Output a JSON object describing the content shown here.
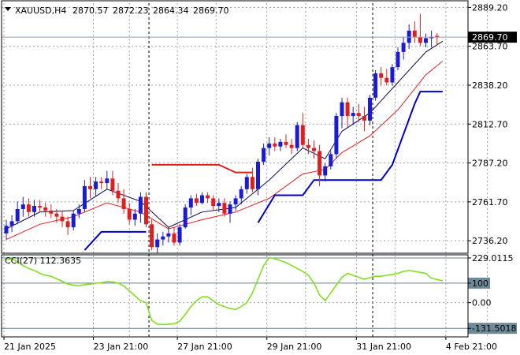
{
  "chart_data": [
    {
      "type": "candlestick",
      "symbol": "XAUUSD,H4",
      "ohlc_header": [
        "2870.57",
        "2872.23",
        "2864.34",
        "2869.70"
      ],
      "current_price_label": "2869.70",
      "current_price": 2869.7,
      "ylim": [
        2728,
        2892
      ],
      "y_ticks": [
        "2889.20",
        "2863.70",
        "2838.20",
        "2812.70",
        "2787.20",
        "2761.70",
        "2736.20"
      ],
      "x_labels": [
        "21 Jan 2025",
        "23 Jan 21:00",
        "27 Jan 21:00",
        "29 Jan 21:00",
        "31 Jan 21:00",
        "4 Feb 21:00"
      ],
      "x_label_bar_index": [
        0,
        16,
        31,
        47,
        63,
        79
      ],
      "day_separators_bar_index": [
        25.5,
        65.5
      ],
      "grid": true,
      "colors": {
        "up": "#1b1bd6",
        "down": "#e01e1e",
        "fast_ma": "#0a0a50",
        "slow_ma": "#e01e1e",
        "stop_red": "#e01e1e",
        "stop_blue": "#0000cc",
        "cci": "#7fe01e",
        "grid": "#9aa3aa",
        "price_line": "#8ea0b0"
      },
      "candles": [
        [
          2741,
          2750,
          2737,
          2746
        ],
        [
          2746,
          2753,
          2742,
          2749
        ],
        [
          2749,
          2762,
          2747,
          2757
        ],
        [
          2757,
          2765,
          2752,
          2760
        ],
        [
          2760,
          2764,
          2752,
          2755
        ],
        [
          2755,
          2763,
          2752,
          2759
        ],
        [
          2759,
          2763,
          2755,
          2758
        ],
        [
          2758,
          2761,
          2752,
          2756
        ],
        [
          2756,
          2760,
          2751,
          2754
        ],
        [
          2754,
          2757,
          2748,
          2752
        ],
        [
          2752,
          2756,
          2745,
          2749
        ],
        [
          2749,
          2752,
          2740,
          2745
        ],
        [
          2745,
          2756,
          2743,
          2754
        ],
        [
          2754,
          2760,
          2751,
          2757
        ],
        [
          2757,
          2776,
          2755,
          2772
        ],
        [
          2772,
          2778,
          2764,
          2770
        ],
        [
          2770,
          2778,
          2765,
          2775
        ],
        [
          2775,
          2778,
          2770,
          2774
        ],
        [
          2774,
          2782,
          2770,
          2777
        ],
        [
          2777,
          2782,
          2766,
          2769
        ],
        [
          2769,
          2774,
          2761,
          2764
        ],
        [
          2764,
          2770,
          2754,
          2757
        ],
        [
          2757,
          2761,
          2747,
          2750
        ],
        [
          2750,
          2757,
          2746,
          2754
        ],
        [
          2754,
          2768,
          2748,
          2765
        ],
        [
          2765,
          2768,
          2745,
          2747
        ],
        [
          2747,
          2750,
          2730,
          2732
        ],
        [
          2732,
          2741,
          2728,
          2737
        ],
        [
          2737,
          2742,
          2733,
          2739
        ],
        [
          2739,
          2745,
          2735,
          2741
        ],
        [
          2741,
          2745,
          2733,
          2735
        ],
        [
          2735,
          2747,
          2733,
          2745
        ],
        [
          2745,
          2760,
          2744,
          2758
        ],
        [
          2758,
          2766,
          2753,
          2764
        ],
        [
          2764,
          2767,
          2759,
          2761
        ],
        [
          2761,
          2768,
          2760,
          2766
        ],
        [
          2766,
          2768,
          2761,
          2764
        ],
        [
          2764,
          2766,
          2756,
          2759
        ],
        [
          2759,
          2764,
          2755,
          2761
        ],
        [
          2761,
          2764,
          2752,
          2754
        ],
        [
          2754,
          2762,
          2748,
          2760
        ],
        [
          2760,
          2766,
          2756,
          2764
        ],
        [
          2764,
          2772,
          2760,
          2770
        ],
        [
          2770,
          2780,
          2767,
          2778
        ],
        [
          2778,
          2784,
          2768,
          2770
        ],
        [
          2770,
          2790,
          2766,
          2788
        ],
        [
          2788,
          2800,
          2786,
          2797
        ],
        [
          2797,
          2804,
          2792,
          2800
        ],
        [
          2800,
          2804,
          2795,
          2798
        ],
        [
          2798,
          2803,
          2795,
          2801
        ],
        [
          2801,
          2806,
          2797,
          2799
        ],
        [
          2799,
          2803,
          2793,
          2797
        ],
        [
          2797,
          2814,
          2795,
          2812
        ],
        [
          2812,
          2820,
          2797,
          2799
        ],
        [
          2799,
          2803,
          2793,
          2797
        ],
        [
          2797,
          2802,
          2790,
          2795
        ],
        [
          2795,
          2799,
          2772,
          2779
        ],
        [
          2779,
          2787,
          2775,
          2785
        ],
        [
          2785,
          2795,
          2783,
          2793
        ],
        [
          2793,
          2820,
          2790,
          2818
        ],
        [
          2818,
          2830,
          2810,
          2827
        ],
        [
          2827,
          2830,
          2811,
          2818
        ],
        [
          2818,
          2824,
          2812,
          2820
        ],
        [
          2820,
          2826,
          2814,
          2818
        ],
        [
          2818,
          2824,
          2808,
          2815
        ],
        [
          2815,
          2832,
          2812,
          2830
        ],
        [
          2830,
          2848,
          2828,
          2846
        ],
        [
          2846,
          2850,
          2838,
          2843
        ],
        [
          2843,
          2849,
          2838,
          2840
        ],
        [
          2840,
          2852,
          2838,
          2850
        ],
        [
          2850,
          2863,
          2848,
          2860
        ],
        [
          2860,
          2870,
          2855,
          2866
        ],
        [
          2866,
          2878,
          2862,
          2874
        ],
        [
          2874,
          2880,
          2866,
          2870
        ],
        [
          2870,
          2885,
          2864,
          2866
        ],
        [
          2866,
          2872,
          2863,
          2869
        ],
        [
          2869,
          2874,
          2863,
          2870
        ],
        [
          2870.57,
          2872.23,
          2864.34,
          2869.7
        ]
      ],
      "moving_averages": [
        {
          "color": "#0a0a50",
          "points": [
            [
              0,
              2744
            ],
            [
              6,
              2755
            ],
            [
              12,
              2756
            ],
            [
              18,
              2770
            ],
            [
              24,
              2762
            ],
            [
              29,
              2745
            ],
            [
              35,
              2755
            ],
            [
              41,
              2758
            ],
            [
              47,
              2776
            ],
            [
              53,
              2797
            ],
            [
              57,
              2790
            ],
            [
              60,
              2808
            ],
            [
              65,
              2820
            ],
            [
              70,
              2840
            ],
            [
              75,
              2860
            ],
            [
              78,
              2867
            ]
          ]
        },
        {
          "color": "#e01e1e",
          "points": [
            [
              0,
              2737
            ],
            [
              6,
              2747
            ],
            [
              12,
              2752
            ],
            [
              18,
              2761
            ],
            [
              24,
              2755
            ],
            [
              29,
              2744
            ],
            [
              35,
              2750
            ],
            [
              41,
              2755
            ],
            [
              47,
              2764
            ],
            [
              53,
              2780
            ],
            [
              57,
              2783
            ],
            [
              60,
              2794
            ],
            [
              65,
              2805
            ],
            [
              70,
              2822
            ],
            [
              75,
              2845
            ],
            [
              78,
              2854
            ]
          ]
        }
      ],
      "stop_lines": [
        {
          "color": "#e01e1e",
          "points": [
            [
              26,
              2786
            ],
            [
              38,
              2786
            ],
            [
              41,
              2781
            ],
            [
              44,
              2781
            ]
          ]
        },
        {
          "color": "#0000cc",
          "points": [
            [
              14,
              2730
            ],
            [
              17,
              2742
            ],
            [
              25,
              2742
            ]
          ]
        },
        {
          "color": "#0000cc",
          "points": [
            [
              45,
              2748
            ],
            [
              48,
              2766
            ],
            [
              53,
              2766
            ],
            [
              55,
              2776
            ],
            [
              67,
              2776
            ],
            [
              69,
              2786
            ],
            [
              73,
              2826
            ],
            [
              74,
              2834
            ],
            [
              78,
              2834
            ]
          ]
        }
      ]
    },
    {
      "type": "line",
      "indicator_label": "CCI(27) 112.3635",
      "ylim": [
        -175,
        245
      ],
      "levels": [
        229.0115,
        100,
        0,
        -131.5018
      ],
      "level_labels": [
        "229.0115",
        "100",
        "0.00",
        "-131.5018"
      ],
      "series": [
        {
          "color": "#7fe01e",
          "values": [
            222,
            225,
            210,
            190,
            175,
            165,
            150,
            140,
            135,
            122,
            110,
            95,
            90,
            88,
            92,
            95,
            100,
            102,
            108,
            106,
            100,
            85,
            60,
            35,
            10,
            0,
            -90,
            -110,
            -112,
            -110,
            -108,
            -95,
            -60,
            -20,
            10,
            30,
            30,
            10,
            -10,
            -20,
            -30,
            -35,
            -20,
            0,
            50,
            120,
            190,
            230,
            225,
            215,
            205,
            190,
            175,
            160,
            140,
            100,
            40,
            10,
            50,
            90,
            130,
            150,
            140,
            130,
            120,
            128,
            135,
            135,
            140,
            145,
            150,
            160,
            165,
            160,
            155,
            150,
            125,
            118,
            112.36
          ]
        }
      ]
    }
  ]
}
